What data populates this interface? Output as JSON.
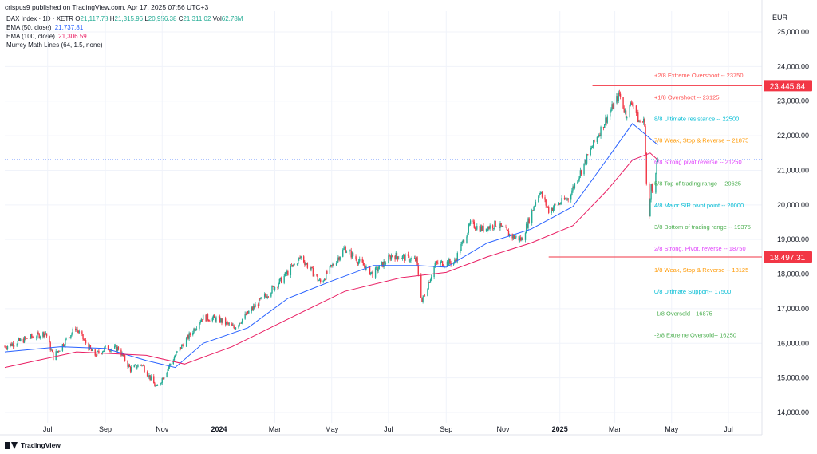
{
  "header": {
    "text": "crispus9 published on TradingView.com, Apr 17, 2025 07:56 UTC+3"
  },
  "legend": {
    "symbol": "DAX Index · 1D · XETR",
    "open_label": "O",
    "open": "21,117.78",
    "high_label": "H",
    "high": "21,315.96",
    "low_label": "L",
    "low": "20,956.38",
    "close_label": "C",
    "close": "21,311.02",
    "vol_label": "Vol",
    "vol": "62.78M",
    "ema50_label": "EMA (50, close)",
    "ema50_value": "21,737.81",
    "ema100_label": "EMA (100, close)",
    "ema100_value": "21,306.59",
    "murrey_label": "Murrey Math Lines (64, 1.5, none)"
  },
  "footer": {
    "brand": "TradingView"
  },
  "colors": {
    "up": "#22ab94",
    "down": "#f23645",
    "ema50": "#2962ff",
    "ema100": "#e91e63",
    "red_label_bg": "#f23645"
  },
  "chart_data": {
    "type": "candlestick",
    "currency": "EUR",
    "y_ticks": [
      14000,
      15000,
      16000,
      17000,
      18000,
      19000,
      20000,
      21000,
      22000,
      23000,
      24000,
      25000
    ],
    "y_tick_labels": [
      "14,000.00",
      "15,000.00",
      "16,000.00",
      "17,000.00",
      "18,000.00",
      "19,000.00",
      "20,000.00",
      "21,000.00",
      "22,000.00",
      "23,000.00",
      "24,000.00",
      "25,000.00"
    ],
    "ylim": [
      13700,
      25600
    ],
    "x_labels": [
      "Jul",
      "Sep",
      "Nov",
      "2024",
      "Mar",
      "May",
      "Jul",
      "Sep",
      "Nov",
      "2025",
      "Mar",
      "May",
      "Jul"
    ],
    "x_label_bold": [
      false,
      false,
      false,
      true,
      false,
      false,
      false,
      false,
      false,
      true,
      false,
      false,
      false
    ],
    "x_label_dates": [
      "2023-07-01",
      "2023-09-01",
      "2023-11-01",
      "2024-01-01",
      "2024-03-01",
      "2024-05-01",
      "2024-07-01",
      "2024-09-01",
      "2024-11-01",
      "2025-01-01",
      "2025-03-01",
      "2025-05-01",
      "2025-07-01"
    ],
    "x_range": [
      "2023-05-16",
      "2025-08-06"
    ],
    "price_path": [
      [
        "2023-05-16",
        15900
      ],
      [
        "2023-06-10",
        16150
      ],
      [
        "2023-06-29",
        16300
      ],
      [
        "2023-07-07",
        15600
      ],
      [
        "2023-07-31",
        16450
      ],
      [
        "2023-08-20",
        15650
      ],
      [
        "2023-09-01",
        15850
      ],
      [
        "2023-09-15",
        15850
      ],
      [
        "2023-09-28",
        15250
      ],
      [
        "2023-10-10",
        15400
      ],
      [
        "2023-10-26",
        14700
      ],
      [
        "2023-11-15",
        15650
      ],
      [
        "2023-12-14",
        16750
      ],
      [
        "2023-12-31",
        16700
      ],
      [
        "2024-01-17",
        16450
      ],
      [
        "2024-02-02",
        16900
      ],
      [
        "2024-03-07",
        17800
      ],
      [
        "2024-03-29",
        18500
      ],
      [
        "2024-04-19",
        17750
      ],
      [
        "2024-05-15",
        18750
      ],
      [
        "2024-06-14",
        18000
      ],
      [
        "2024-07-05",
        18550
      ],
      [
        "2024-07-31",
        18400
      ],
      [
        "2024-08-06",
        17200
      ],
      [
        "2024-08-20",
        18300
      ],
      [
        "2024-09-10",
        18350
      ],
      [
        "2024-09-27",
        19450
      ],
      [
        "2024-10-10",
        19300
      ],
      [
        "2024-10-25",
        19450
      ],
      [
        "2024-11-10",
        19100
      ],
      [
        "2024-11-21",
        19000
      ],
      [
        "2024-12-10",
        20400
      ],
      [
        "2024-12-20",
        19850
      ],
      [
        "2025-01-10",
        20200
      ],
      [
        "2025-02-05",
        21700
      ],
      [
        "2025-02-20",
        22500
      ],
      [
        "2025-03-06",
        23200
      ],
      [
        "2025-03-13",
        22600
      ],
      [
        "2025-03-20",
        23000
      ],
      [
        "2025-03-27",
        22400
      ],
      [
        "2025-04-02",
        22400
      ],
      [
        "2025-04-04",
        20600
      ],
      [
        "2025-04-07",
        19600
      ],
      [
        "2025-04-09",
        20700
      ],
      [
        "2025-04-11",
        20300
      ],
      [
        "2025-04-16",
        21311
      ]
    ],
    "ema50": [
      [
        "2023-05-16",
        15750
      ],
      [
        "2023-07-15",
        15900
      ],
      [
        "2023-09-01",
        15850
      ],
      [
        "2023-10-15",
        15500
      ],
      [
        "2023-11-15",
        15300
      ],
      [
        "2023-12-15",
        16000
      ],
      [
        "2024-02-01",
        16450
      ],
      [
        "2024-03-15",
        17300
      ],
      [
        "2024-05-01",
        17800
      ],
      [
        "2024-06-15",
        18250
      ],
      [
        "2024-07-31",
        18250
      ],
      [
        "2024-09-01",
        18200
      ],
      [
        "2024-10-15",
        18900
      ],
      [
        "2024-12-01",
        19300
      ],
      [
        "2025-01-15",
        19950
      ],
      [
        "2025-02-20",
        21300
      ],
      [
        "2025-03-20",
        22350
      ],
      [
        "2025-04-16",
        21737
      ]
    ],
    "ema100": [
      [
        "2023-05-16",
        15300
      ],
      [
        "2023-08-01",
        15750
      ],
      [
        "2023-10-15",
        15650
      ],
      [
        "2023-11-25",
        15400
      ],
      [
        "2024-01-15",
        15900
      ],
      [
        "2024-03-15",
        16700
      ],
      [
        "2024-05-15",
        17500
      ],
      [
        "2024-07-15",
        17900
      ],
      [
        "2024-09-01",
        18050
      ],
      [
        "2024-10-15",
        18500
      ],
      [
        "2024-12-01",
        18900
      ],
      [
        "2025-01-15",
        19400
      ],
      [
        "2025-02-20",
        20400
      ],
      [
        "2025-03-20",
        21300
      ],
      [
        "2025-04-08",
        21500
      ],
      [
        "2025-04-16",
        21306
      ]
    ],
    "murrey_lines": [
      {
        "label": "+2/8 Extreme Overshoot -- ",
        "value": 23750,
        "color": "#ff5252"
      },
      {
        "label": "+1/8 Overshoot -- ",
        "value": 23125,
        "color": "#ff5252"
      },
      {
        "label": "8/8 Ultimate resistance -- ",
        "value": 22500,
        "color": "#00bcd4"
      },
      {
        "label": "7/8 Weak, Stop & Reverse -- ",
        "value": 21875,
        "color": "#ff9800"
      },
      {
        "label": "6/8 Strong pivot reverse -- ",
        "value": 21250,
        "color": "#e040fb"
      },
      {
        "label": "5/8 Top of trading range -- ",
        "value": 20625,
        "color": "#4caf50"
      },
      {
        "label": "4/8 Major S/R pivot point -- ",
        "value": 20000,
        "color": "#00bcd4"
      },
      {
        "label": "3/8 Bottom of trading range -- ",
        "value": 19375,
        "color": "#4caf50"
      },
      {
        "label": "2/8 Strong, Pivot, reverse -- ",
        "value": 18750,
        "color": "#e040fb"
      },
      {
        "label": "1/8 Weak, Stop & Reverse -- ",
        "value": 18125,
        "color": "#ff9800"
      },
      {
        "label": "0/8 Ultimate Support-- ",
        "value": 17500,
        "color": "#00bcd4"
      },
      {
        "label": "-1/8 Oversold-- ",
        "value": 16875,
        "color": "#4caf50"
      },
      {
        "label": "-2/8 Extreme Oversold-- ",
        "value": 16250,
        "color": "#4caf50"
      }
    ],
    "horizontal_levels": [
      {
        "value": 23445.84,
        "label": "23,445.84",
        "start_date": "2025-02-05"
      },
      {
        "value": 18497.31,
        "label": "18,497.31",
        "start_date": "2024-12-20"
      }
    ],
    "current_price_line": 21311.02
  }
}
